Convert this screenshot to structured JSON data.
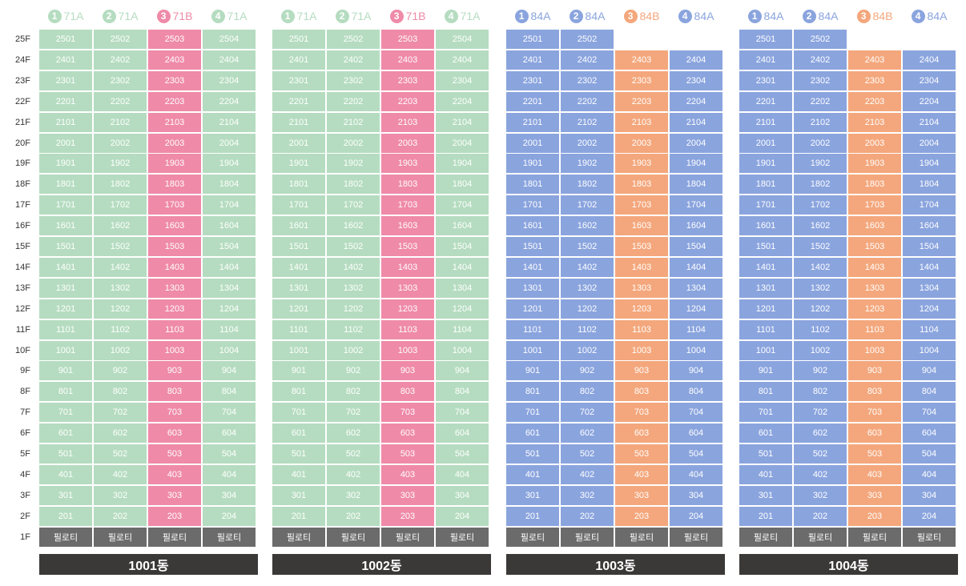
{
  "floors": [
    "25F",
    "24F",
    "23F",
    "22F",
    "21F",
    "20F",
    "19F",
    "18F",
    "17F",
    "16F",
    "15F",
    "14F",
    "13F",
    "12F",
    "11F",
    "10F",
    "9F",
    "8F",
    "7F",
    "6F",
    "5F",
    "4F",
    "3F",
    "2F",
    "1F"
  ],
  "unit_types": {
    "71A": {
      "color": "#b5dcc0"
    },
    "71B": {
      "color": "#ef8aa8"
    },
    "84A": {
      "color": "#8aa4de"
    },
    "84B": {
      "color": "#f4a77c"
    }
  },
  "piloti_label": "필로티",
  "buildings": [
    {
      "name": "1001동",
      "lines": [
        {
          "num": "1",
          "type": "71A",
          "top_floor": 25
        },
        {
          "num": "2",
          "type": "71A",
          "top_floor": 25
        },
        {
          "num": "3",
          "type": "71B",
          "top_floor": 25
        },
        {
          "num": "4",
          "type": "71A",
          "top_floor": 25
        }
      ]
    },
    {
      "name": "1002동",
      "lines": [
        {
          "num": "1",
          "type": "71A",
          "top_floor": 25
        },
        {
          "num": "2",
          "type": "71A",
          "top_floor": 25
        },
        {
          "num": "3",
          "type": "71B",
          "top_floor": 25
        },
        {
          "num": "4",
          "type": "71A",
          "top_floor": 25
        }
      ]
    },
    {
      "name": "1003동",
      "lines": [
        {
          "num": "1",
          "type": "84A",
          "top_floor": 25
        },
        {
          "num": "2",
          "type": "84A",
          "top_floor": 25
        },
        {
          "num": "3",
          "type": "84B",
          "top_floor": 24
        },
        {
          "num": "4",
          "type": "84A",
          "top_floor": 24
        }
      ]
    },
    {
      "name": "1004동",
      "lines": [
        {
          "num": "1",
          "type": "84A",
          "top_floor": 25
        },
        {
          "num": "2",
          "type": "84A",
          "top_floor": 25
        },
        {
          "num": "3",
          "type": "84B",
          "top_floor": 24
        },
        {
          "num": "4",
          "type": "84A",
          "top_floor": 24
        }
      ]
    }
  ]
}
